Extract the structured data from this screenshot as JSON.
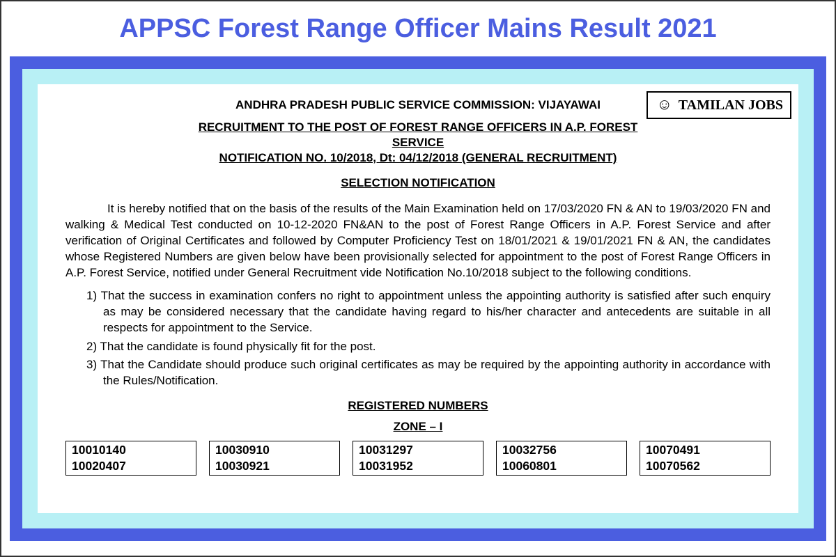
{
  "colors": {
    "header_text": "#4b5ee0",
    "blue_frame": "#4b5ee0",
    "cyan_inner": "#b8f0f5",
    "document_bg": "#ffffff",
    "text": "#000000"
  },
  "banner": {
    "title": "APPSC Forest Range Officer Mains Result 2021"
  },
  "watermark": {
    "text": "TAMILAN JOBS"
  },
  "document": {
    "commission_header": "ANDHRA PRADESH PUBLIC SERVICE COMMISSION: VIJAYAWAI",
    "recruitment_line1": "RECRUITMENT TO THE POST OF FOREST RANGE OFFICERS IN A.P. FOREST",
    "recruitment_line2": "SERVICE",
    "recruitment_line3": "NOTIFICATION NO. 10/2018, Dt: 04/12/2018 (GENERAL RECRUITMENT)",
    "selection_heading": "SELECTION  NOTIFICATION",
    "body_para": "It is hereby notified that on the basis of the results of the Main Examination held on 17/03/2020 FN & AN to 19/03/2020 FN and walking & Medical Test conducted on 10-12-2020 FN&AN to the post of Forest Range Officers in A.P. Forest Service and  after verification of Original Certificates and followed by Computer Proficiency Test on 18/01/2021 & 19/01/2021 FN & AN, the candidates whose Registered Numbers are given below have been provisionally selected for appointment to the post of Forest Range Officers in A.P. Forest Service, notified under General Recruitment vide  Notification No.10/2018 subject to the following conditions.",
    "conditions": [
      "1) That the success in examination confers no right to appointment unless the appointing authority is satisfied after such enquiry as may be considered necessary that the candidate having regard to his/her character and antecedents are suitable in all respects for appointment to the Service.",
      "2) That the candidate is found physically fit for the post.",
      "3) That the Candidate should produce such original certificates as may be required by the appointing authority  in accordance with the Rules/Notification."
    ],
    "registered_heading": "REGISTERED NUMBERS",
    "zone_heading": "ZONE – I",
    "number_groups": [
      [
        "10010140",
        "10020407"
      ],
      [
        "10030910",
        "10030921"
      ],
      [
        "10031297",
        "10031952"
      ],
      [
        "10032756",
        "10060801"
      ],
      [
        "10070491",
        "10070562"
      ]
    ]
  }
}
